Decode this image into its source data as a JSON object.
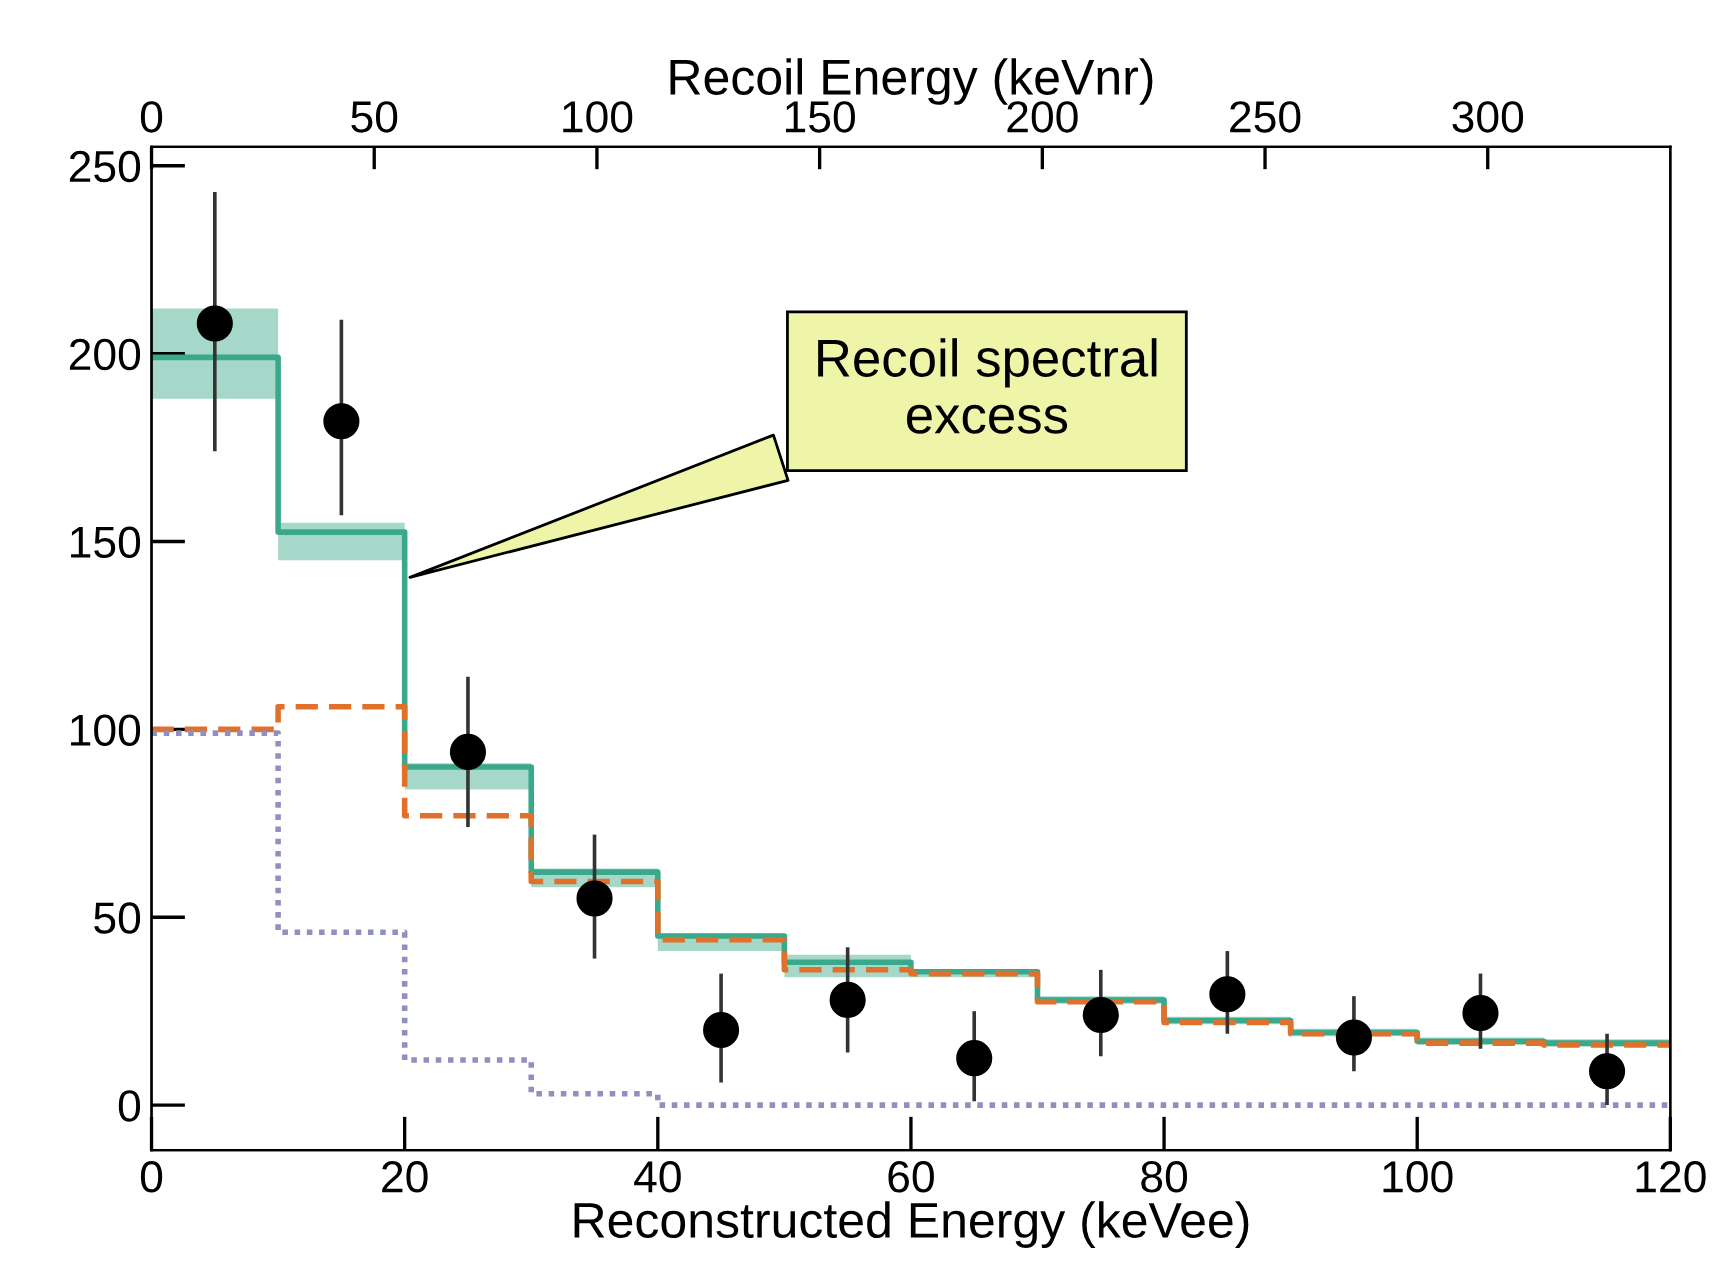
{
  "chart_data": {
    "type": "step",
    "xlabel": "Reconstructed Energy (keVee)",
    "x2label": "Recoil Energy (keVnr)",
    "xlim": [
      0,
      120
    ],
    "xticks": [
      0,
      20,
      40,
      60,
      80,
      100,
      120
    ],
    "x2lim": [
      0,
      341
    ],
    "x2ticks": [
      0,
      50,
      100,
      150,
      200,
      250,
      300
    ],
    "ylim": [
      -12,
      255
    ],
    "yticks": [
      0,
      50,
      100,
      150,
      200,
      250
    ],
    "grid": false,
    "series": [
      {
        "color": "#3aa88a",
        "line_style": "solid",
        "x": [
          0,
          10,
          20,
          30,
          40,
          50,
          60,
          70,
          80,
          90,
          100,
          110,
          120
        ],
        "values": [
          199,
          152.5,
          90,
          62,
          45,
          38,
          35.5,
          28,
          22.5,
          19.3,
          17,
          16.5,
          16.5
        ],
        "lower": [
          188,
          145,
          84,
          58,
          41,
          34,
          34,
          27,
          21.5,
          18.3,
          16,
          15.5,
          15.5
        ],
        "upper": [
          212,
          155,
          91,
          63,
          45.5,
          40,
          36,
          29,
          23.5,
          20.3,
          18,
          17.5,
          17.5
        ]
      },
      {
        "color": "#e0702a",
        "line_style": "dashed",
        "x": [
          0,
          10,
          20,
          30,
          40,
          50,
          60,
          70,
          80,
          90,
          100,
          110,
          120
        ],
        "values": [
          100,
          106,
          77,
          59.5,
          44,
          36,
          35,
          27.5,
          22,
          19,
          16.5,
          16,
          16
        ]
      },
      {
        "color": "#9090c0",
        "line_style": "dotted",
        "x": [
          0,
          10,
          20,
          30,
          40,
          50,
          60,
          70,
          80,
          90,
          100,
          110,
          120
        ],
        "values": [
          99,
          46,
          12,
          3,
          0,
          0,
          0,
          0,
          0,
          0,
          0,
          0,
          0
        ]
      },
      {
        "type": "scatter",
        "color": "#000000",
        "marker": "circle",
        "x": [
          5,
          15,
          25,
          35,
          45,
          55,
          65,
          75,
          85,
          95,
          105,
          115
        ],
        "values": [
          208,
          182,
          94,
          55,
          20,
          28,
          12.5,
          24,
          29.5,
          18,
          24.5,
          9
        ],
        "errors": [
          [
            174,
            243
          ],
          [
            157,
            209
          ],
          [
            74,
            114
          ],
          [
            39,
            72
          ],
          [
            6,
            35
          ],
          [
            14,
            42
          ],
          [
            1,
            25
          ],
          [
            13,
            36
          ],
          [
            19,
            41
          ],
          [
            9,
            29
          ],
          [
            15,
            35
          ],
          [
            0,
            19
          ]
        ]
      }
    ],
    "annotations": [
      {
        "text": "Recoil spectral\nexcess",
        "x": 20,
        "y": 140
      }
    ]
  }
}
